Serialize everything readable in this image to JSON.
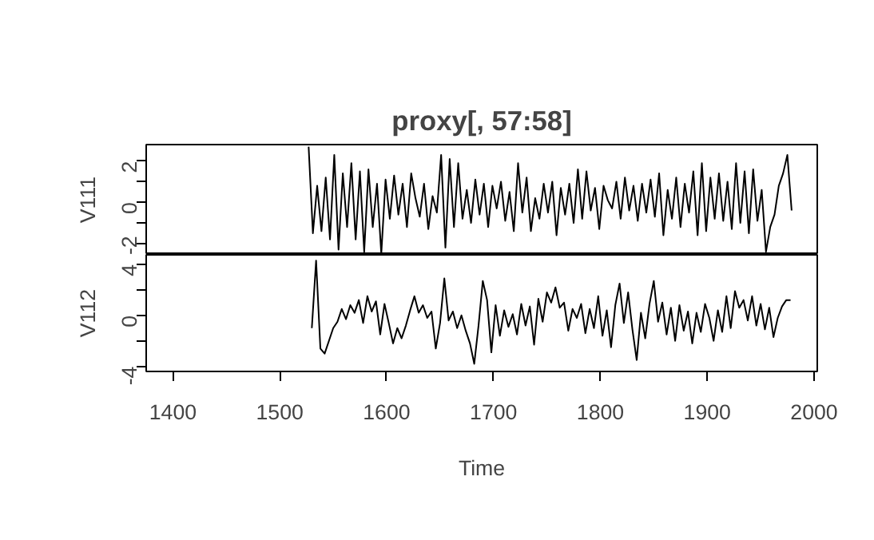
{
  "chart_data": [
    {
      "type": "line",
      "title": "proxy[, 57:58]",
      "ylabel": "V111",
      "tick_labels": "y",
      "xlim": [
        1375,
        2003
      ],
      "ylim": [
        -2.55,
        2.8
      ],
      "yticks": [
        -2,
        {
          "value": -1,
          "label": null
        },
        0,
        {
          "value": 1,
          "label": null
        },
        2
      ],
      "series": [
        {
          "color": "#000000",
          "x": [
            1527,
            1531,
            1535,
            1539,
            1543,
            1547,
            1551,
            1555,
            1559,
            1563,
            1567,
            1571,
            1575,
            1579,
            1583,
            1587,
            1591,
            1595,
            1599,
            1603,
            1607,
            1611,
            1615,
            1619,
            1623,
            1627,
            1631,
            1635,
            1639,
            1643,
            1647,
            1651,
            1655,
            1659,
            1663,
            1667,
            1671,
            1675,
            1679,
            1683,
            1687,
            1691,
            1695,
            1699,
            1703,
            1707,
            1711,
            1715,
            1719,
            1723,
            1727,
            1731,
            1735,
            1739,
            1743,
            1747,
            1751,
            1755,
            1759,
            1763,
            1767,
            1771,
            1775,
            1779,
            1783,
            1787,
            1791,
            1795,
            1799,
            1803,
            1807,
            1811,
            1815,
            1819,
            1823,
            1827,
            1831,
            1835,
            1839,
            1843,
            1847,
            1851,
            1855,
            1859,
            1863,
            1867,
            1871,
            1875,
            1879,
            1883,
            1887,
            1891,
            1895,
            1899,
            1903,
            1907,
            1911,
            1915,
            1919,
            1923,
            1927,
            1931,
            1935,
            1939,
            1943,
            1947,
            1951,
            1955,
            1959,
            1963,
            1967,
            1971,
            1975,
            1979
          ],
          "values": [
            2.7,
            -1.5,
            0.8,
            -1.4,
            1.2,
            -1.8,
            2.3,
            -2.3,
            1.4,
            -1.2,
            1.9,
            -1.8,
            1.5,
            -2.4,
            1.6,
            -1.2,
            0.9,
            -2.5,
            1.1,
            -0.8,
            1.3,
            -0.6,
            0.9,
            -1.2,
            1.4,
            0.2,
            -0.7,
            0.9,
            -1.3,
            0.3,
            -0.5,
            2.3,
            -2.2,
            2.1,
            -1.2,
            1.9,
            -0.8,
            0.6,
            -1.0,
            1.1,
            -0.6,
            0.9,
            -1.2,
            0.8,
            -0.3,
            1.0,
            -0.9,
            0.5,
            -1.4,
            1.9,
            -0.5,
            1.2,
            -1.4,
            0.2,
            -0.8,
            0.9,
            -0.5,
            1.0,
            -1.6,
            0.7,
            -0.6,
            0.9,
            -1.0,
            1.6,
            -0.8,
            1.5,
            -0.4,
            0.7,
            -1.3,
            0.8,
            0.1,
            -0.3,
            1.0,
            -0.8,
            1.2,
            -0.4,
            0.8,
            -0.9,
            0.9,
            -0.5,
            1.1,
            -0.7,
            1.4,
            -1.6,
            0.6,
            -0.8,
            1.2,
            -1.2,
            0.9,
            -0.5,
            1.5,
            -1.6,
            1.9,
            -1.4,
            1.2,
            -0.8,
            1.4,
            -0.9,
            1.0,
            -1.3,
            1.9,
            -1.0,
            1.5,
            -1.5,
            1.6,
            -0.9,
            0.6,
            -2.4,
            -1.2,
            -0.6,
            0.8,
            1.4,
            2.3,
            -0.4
          ]
        }
      ]
    },
    {
      "type": "line",
      "ylabel": "V112",
      "xlabel": "Time",
      "xlim": [
        1375,
        2003
      ],
      "ylim": [
        -4.4,
        4.75
      ],
      "xticks": [
        1400,
        1500,
        1600,
        1700,
        1800,
        1900,
        2000
      ],
      "yticks": [
        -4,
        {
          "value": -2,
          "label": null
        },
        0,
        {
          "value": 2,
          "label": null
        },
        4
      ],
      "series": [
        {
          "color": "#000000",
          "x": [
            1530,
            1534,
            1538,
            1542,
            1546,
            1550,
            1554,
            1558,
            1562,
            1566,
            1570,
            1574,
            1578,
            1582,
            1586,
            1590,
            1594,
            1598,
            1602,
            1606,
            1610,
            1614,
            1618,
            1622,
            1626,
            1630,
            1634,
            1638,
            1642,
            1646,
            1650,
            1654,
            1658,
            1662,
            1666,
            1670,
            1674,
            1678,
            1682,
            1686,
            1690,
            1694,
            1698,
            1702,
            1706,
            1710,
            1714,
            1718,
            1722,
            1726,
            1730,
            1734,
            1738,
            1742,
            1746,
            1750,
            1754,
            1758,
            1762,
            1766,
            1770,
            1774,
            1778,
            1782,
            1786,
            1790,
            1794,
            1798,
            1802,
            1806,
            1810,
            1814,
            1818,
            1822,
            1826,
            1830,
            1834,
            1838,
            1842,
            1846,
            1850,
            1854,
            1858,
            1862,
            1866,
            1870,
            1874,
            1878,
            1882,
            1886,
            1890,
            1894,
            1898,
            1902,
            1906,
            1910,
            1914,
            1918,
            1922,
            1926,
            1930,
            1934,
            1938,
            1942,
            1946,
            1950,
            1954,
            1958,
            1962,
            1966,
            1970,
            1974,
            1978
          ],
          "values": [
            -1.0,
            4.3,
            -2.6,
            -3.0,
            -2.0,
            -1.0,
            -0.5,
            0.5,
            -0.3,
            0.8,
            0.2,
            1.2,
            -0.6,
            1.5,
            0.3,
            1.1,
            -1.5,
            0.9,
            -0.6,
            -2.2,
            -1.0,
            -1.8,
            -0.8,
            0.4,
            1.5,
            0.2,
            0.8,
            -0.2,
            0.3,
            -2.6,
            -0.6,
            2.9,
            -0.4,
            0.3,
            -1.0,
            0.0,
            -1.2,
            -2.2,
            -3.8,
            -0.8,
            2.7,
            1.2,
            -2.9,
            0.8,
            -1.6,
            0.4,
            -0.9,
            0.1,
            -1.5,
            0.9,
            -0.8,
            0.7,
            -2.3,
            1.3,
            -0.5,
            1.8,
            1.0,
            2.2,
            0.6,
            1.0,
            -1.2,
            0.5,
            -0.2,
            0.9,
            -1.4,
            0.5,
            -1.0,
            1.5,
            -1.6,
            0.4,
            -2.5,
            0.8,
            2.5,
            -0.6,
            1.8,
            -1.1,
            -3.5,
            0.2,
            -1.8,
            0.9,
            2.7,
            -0.5,
            1.0,
            -1.5,
            0.6,
            -2.0,
            0.8,
            -1.2,
            0.3,
            -2.2,
            0.2,
            -1.3,
            0.9,
            -0.2,
            -2.0,
            0.4,
            -1.3,
            1.5,
            -1.0,
            1.9,
            0.6,
            1.2,
            -0.4,
            1.5,
            -0.8,
            0.9,
            -1.1,
            0.6,
            -1.7,
            -0.2,
            0.7,
            1.2,
            1.2
          ]
        }
      ]
    }
  ]
}
